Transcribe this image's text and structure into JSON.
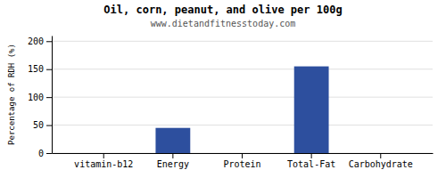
{
  "chart_data": {
    "type": "bar",
    "title": "Oil, corn, peanut, and olive per 100g",
    "subtitle": "www.dietandfitnesstoday.com",
    "categories": [
      "vitamin-b12",
      "Energy",
      "Protein",
      "Total-Fat",
      "Carbohydrate"
    ],
    "values": [
      0,
      45,
      0,
      155,
      0
    ],
    "color": "#2d4f9e",
    "ylabel": "Percentage of RDH (%)",
    "ylim": [
      0,
      210
    ],
    "yticks": [
      0,
      50,
      100,
      150,
      200
    ],
    "grid": true
  }
}
